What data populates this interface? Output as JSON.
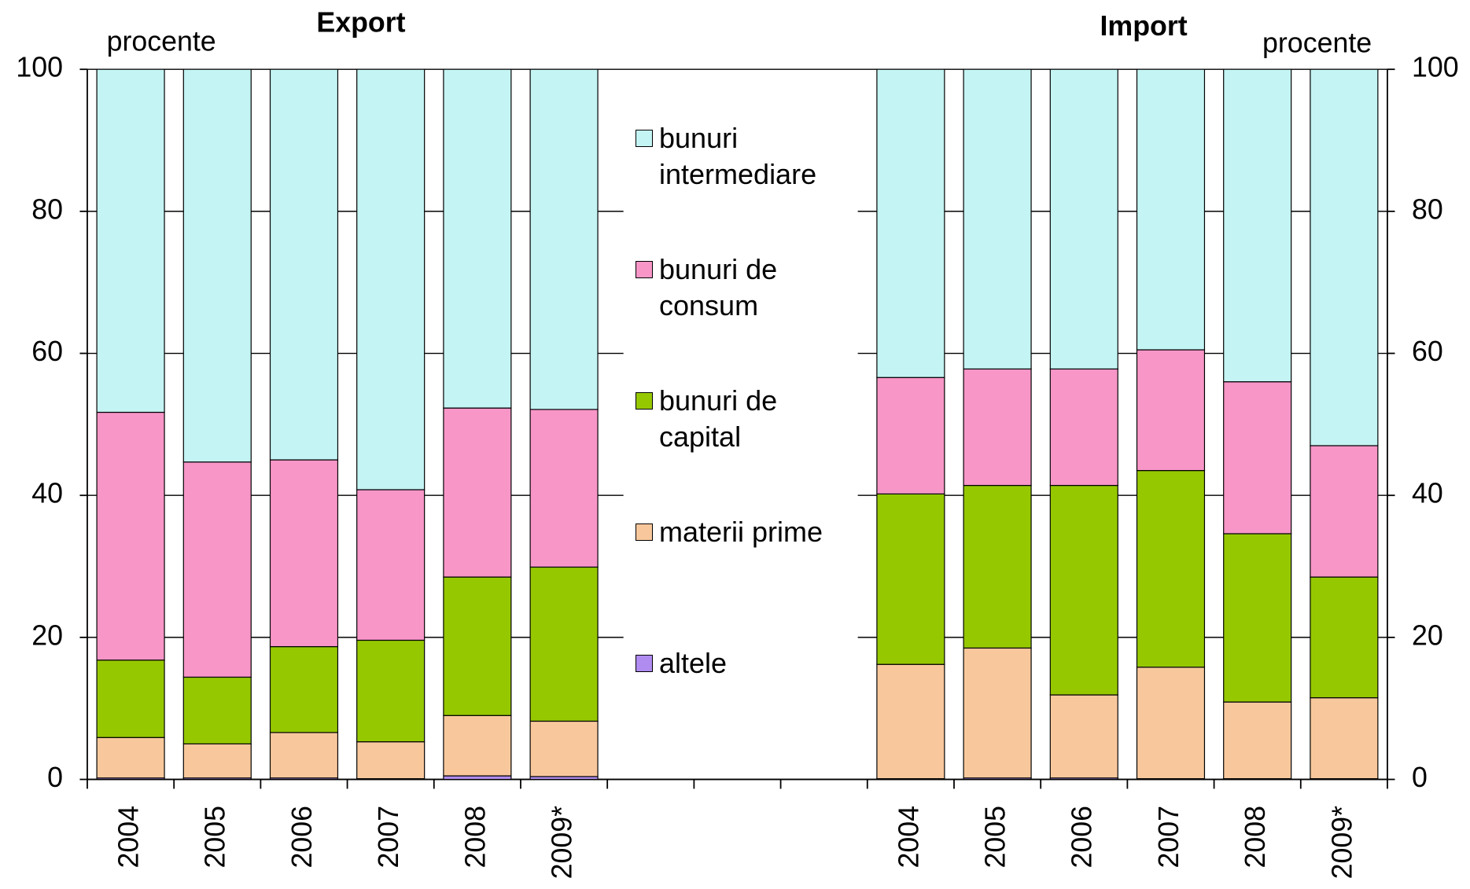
{
  "chart_data": {
    "type": "stacked_bar",
    "titles": [
      "Export",
      "Import"
    ],
    "unit_labels": [
      "procente",
      "procente"
    ],
    "categories": [
      "2004",
      "2005",
      "2006",
      "2007",
      "2008",
      "2009*",
      null,
      null,
      null,
      "2004",
      "2005",
      "2006",
      "2007",
      "2008",
      "2009*"
    ],
    "series": [
      {
        "name": "altele",
        "color": "#b08cf0",
        "values": [
          0.2,
          0.2,
          0.2,
          0.1,
          0.5,
          0.4,
          null,
          null,
          null,
          0.1,
          0.2,
          0.2,
          0.1,
          0.1,
          0.1
        ]
      },
      {
        "name": "materii prime",
        "color": "#f8c89c",
        "values": [
          5.7,
          4.8,
          6.4,
          5.2,
          8.5,
          7.8,
          null,
          null,
          null,
          16.1,
          18.3,
          11.7,
          15.7,
          10.8,
          11.4
        ]
      },
      {
        "name": "bunuri de capital",
        "color": "#96c800",
        "values": [
          10.9,
          9.4,
          12.1,
          14.3,
          19.5,
          21.7,
          null,
          null,
          null,
          24.0,
          22.9,
          29.5,
          27.7,
          23.7,
          17.0
        ]
      },
      {
        "name": "bunuri de consum",
        "color": "#f896c8",
        "values": [
          34.9,
          30.3,
          26.3,
          21.2,
          23.8,
          22.2,
          null,
          null,
          null,
          16.4,
          16.4,
          16.4,
          17.0,
          21.4,
          18.5
        ]
      },
      {
        "name": "bunuri intermediare",
        "color": "#c4f4f4",
        "values": [
          48.3,
          55.3,
          55.0,
          59.2,
          47.7,
          47.9,
          null,
          null,
          null,
          43.4,
          42.2,
          42.2,
          39.5,
          44.0,
          53.0
        ]
      }
    ],
    "ylim": [
      0,
      100
    ],
    "yticks": [
      0,
      20,
      40,
      60,
      80,
      100
    ],
    "grid": true
  }
}
